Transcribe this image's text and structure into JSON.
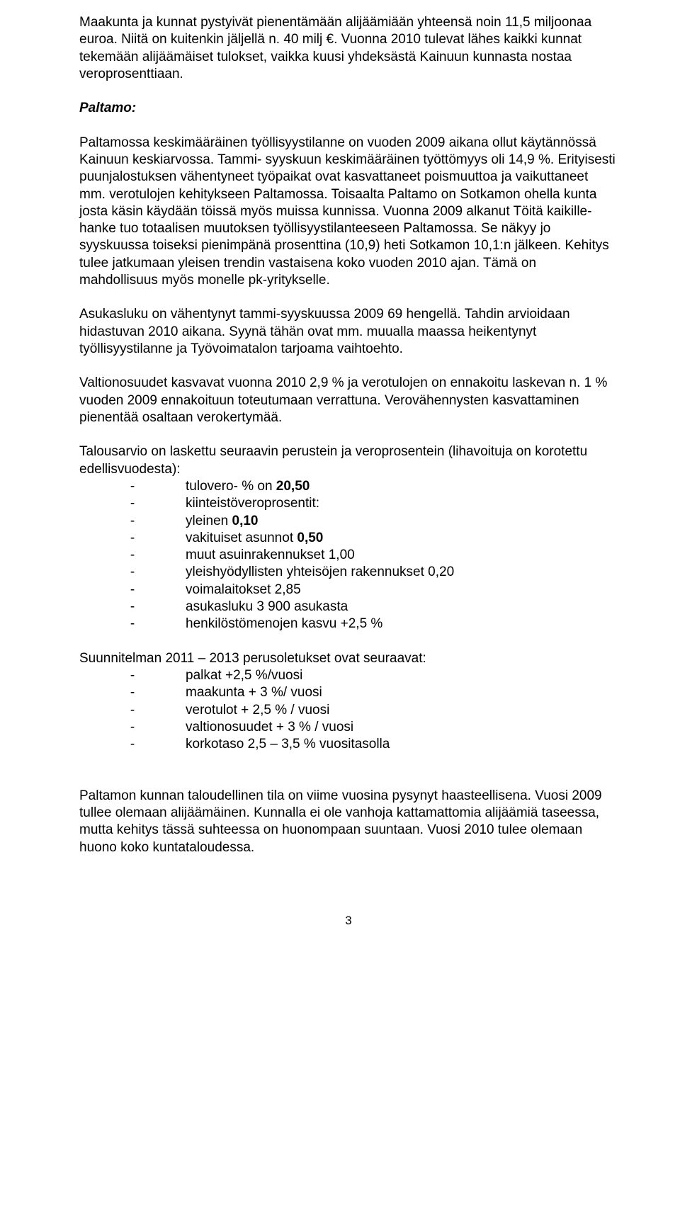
{
  "p1": "Maakunta ja kunnat pystyivät pienentämään alijäämiään yhteensä noin 11,5 miljoonaa euroa. Niitä on kuitenkin jäljellä n. 40 milj €. Vuonna 2010 tulevat lähes kaikki kunnat tekemään alijäämäiset tulokset, vaikka kuusi yhdeksästä Kainuun kunnasta nostaa veroprosenttiaan.",
  "h1": "Paltamo:",
  "p2": "Paltamossa keskimääräinen työllisyystilanne on vuoden 2009 aikana ollut käytännössä Kainuun keskiarvossa. Tammi- syyskuun keskimääräinen työttömyys oli 14,9 %. Erityisesti puunjalostuksen vähentyneet työpaikat ovat kasvattaneet poismuuttoa ja vaikuttaneet mm. verotulojen kehitykseen Paltamossa. Toisaalta Paltamo on Sotkamon ohella kunta josta käsin käydään töissä myös muissa kunnissa. Vuonna 2009 alkanut Töitä kaikille-hanke tuo totaalisen muutoksen työllisyystilanteeseen Paltamossa. Se näkyy jo syyskuussa toiseksi pienimpänä prosenttina (10,9) heti Sotkamon 10,1:n jälkeen. Kehitys tulee jatkumaan yleisen trendin vastaisena koko vuoden 2010 ajan. Tämä on mahdollisuus myös monelle pk-yritykselle.",
  "p3": "Asukasluku on vähentynyt tammi-syyskuussa 2009 69 hengellä. Tahdin arvioidaan hidastuvan 2010 aikana. Syynä tähän ovat mm. muualla maassa heikentynyt työllisyystilanne ja Työvoimatalon tarjoama vaihtoehto.",
  "p4": "Valtionosuudet kasvavat vuonna 2010  2,9 % ja verotulojen on ennakoitu laskevan n. 1 % vuoden 2009 ennakoituun toteutumaan verrattuna. Verovähennysten kasvattaminen pienentää osaltaan verokertymää.",
  "list1": {
    "label": "Talousarvio on laskettu seuraavin perustein ja veroprosentein (lihavoituja on korotettu edellisvuodesta):",
    "items": [
      {
        "pre": "tulovero- % on ",
        "bold": "20,50",
        "post": ""
      },
      {
        "pre": "kiinteistöveroprosentit:",
        "bold": "",
        "post": ""
      },
      {
        "pre": "yleinen ",
        "bold": "0,10",
        "post": ""
      },
      {
        "pre": "vakituiset asunnot ",
        "bold": "0,50",
        "post": ""
      },
      {
        "pre": "muut asuinrakennukset 1,00",
        "bold": "",
        "post": ""
      },
      {
        "pre": "yleishyödyllisten yhteisöjen rakennukset 0,20",
        "bold": "",
        "post": ""
      },
      {
        "pre": "voimalaitokset  2,85",
        "bold": "",
        "post": ""
      },
      {
        "pre": "asukasluku 3 900 asukasta",
        "bold": "",
        "post": ""
      },
      {
        "pre": "henkilöstömenojen kasvu  +2,5 %",
        "bold": "",
        "post": ""
      }
    ]
  },
  "list2": {
    "label": "Suunnitelman 2011 – 2013 perusoletukset ovat seuraavat:",
    "items": [
      "palkat +2,5 %/vuosi",
      "maakunta + 3 %/ vuosi",
      "verotulot + 2,5 % / vuosi",
      "valtionosuudet + 3 % / vuosi",
      "korkotaso 2,5 – 3,5 % vuositasolla"
    ]
  },
  "p5": "Paltamon kunnan taloudellinen tila on viime vuosina pysynyt haasteellisena. Vuosi 2009  tullee olemaan alijäämäinen. Kunnalla ei ole vanhoja kattamattomia alijäämiä taseessa, mutta kehitys tässä suhteessa on huonompaan suuntaan. Vuosi 2010 tulee olemaan huono koko kuntataloudessa.",
  "pagenum": "3"
}
